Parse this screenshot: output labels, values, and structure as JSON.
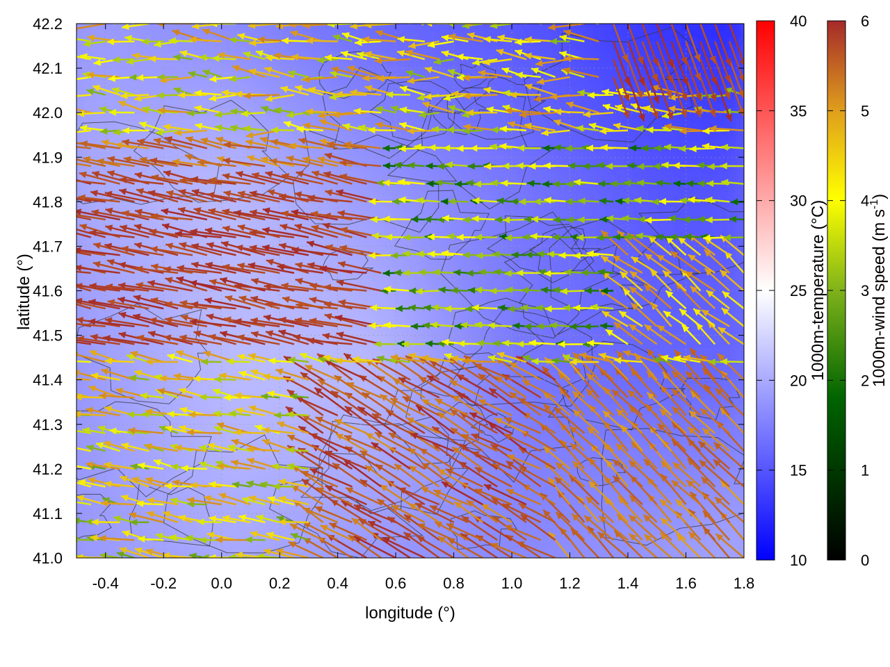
{
  "chart_data": {
    "type": "heatmap",
    "xlabel": "longitude (°)",
    "ylabel": "latitude (°)",
    "xlim": [
      -0.5,
      1.8
    ],
    "ylim": [
      41.0,
      42.2
    ],
    "xticks": [
      -0.4,
      -0.2,
      0.0,
      0.2,
      0.4,
      0.6,
      0.8,
      1.0,
      1.2,
      1.4,
      1.6,
      1.8
    ],
    "xtick_labels": [
      "-0.4",
      "-0.2",
      "0.0",
      "0.2",
      "0.4",
      "0.6",
      "0.8",
      "1.0",
      "1.2",
      "1.4",
      "1.6",
      "1.8"
    ],
    "yticks": [
      41.0,
      41.1,
      41.2,
      41.3,
      41.4,
      41.5,
      41.6,
      41.7,
      41.8,
      41.9,
      42.0,
      42.1,
      42.2
    ],
    "ytick_labels": [
      "41.0",
      "41.1",
      "41.2",
      "41.3",
      "41.4",
      "41.5",
      "41.6",
      "41.7",
      "41.8",
      "41.9",
      "42.0",
      "42.1",
      "42.2"
    ],
    "grid": true,
    "temperature_colorbar": {
      "label": "1000m-temperature (°C)",
      "range": [
        10,
        40
      ],
      "ticks": [
        10,
        15,
        20,
        25,
        30,
        35,
        40
      ],
      "tick_labels": [
        "10",
        "15",
        "20",
        "25",
        "30",
        "35",
        "40"
      ],
      "colors": [
        "#0000ff",
        "#ffffff",
        "#ff0000"
      ]
    },
    "wind_colorbar": {
      "label": "1000m-wind speed (m s",
      "label_sup": "-1",
      "label_end": ")",
      "range": [
        0,
        6
      ],
      "ticks": [
        0,
        1,
        2,
        3,
        4,
        5,
        6
      ],
      "tick_labels": [
        "0",
        "1",
        "2",
        "3",
        "4",
        "5",
        "6"
      ],
      "colors": [
        "#000000",
        "#006400",
        "#7fb21a",
        "#ffff00",
        "#e0a01c",
        "#c06020",
        "#a52a2a"
      ]
    },
    "temperature_field": {
      "description_values_degC": "approximate 1000m temperature",
      "lon": [
        -0.5,
        0.0,
        0.5,
        1.0,
        1.5,
        1.8
      ],
      "lat": [
        41.0,
        41.4,
        41.8,
        42.2
      ],
      "values": [
        [
          19,
          20,
          19,
          18,
          19,
          20
        ],
        [
          19,
          21,
          21,
          17,
          16,
          16
        ],
        [
          20,
          21,
          19,
          17,
          15,
          15
        ],
        [
          19,
          18,
          16,
          15,
          13,
          12
        ]
      ]
    },
    "wind_field": {
      "description": "1000m wind vectors, dominant easterly to south-easterly flow",
      "regions": [
        {
          "area": "west-central corridor (lat 41.45-41.95, lon -0.5-0.6)",
          "direction_deg_from": 100,
          "speed_ms": 6
        },
        {
          "area": "south-central (lat 41.05-41.4, lon 0.3-1.2)",
          "direction_deg_from": 120,
          "speed_ms": 5.5
        },
        {
          "area": "south-east (lat 41.0-41.4, lon 1.2-1.8)",
          "direction_deg_from": 135,
          "speed_ms": 4.5
        },
        {
          "area": "east (lat 41.4-41.9, lon 0.8-1.8)",
          "direction_deg_from": 90,
          "speed_ms": 2
        },
        {
          "area": "north-east (lat 42.05-42.2, lon 1.4-1.8)",
          "direction_deg_from": 340,
          "speed_ms": 5
        },
        {
          "area": "north (lat 41.95-42.2, lon 0.2-1.4)",
          "direction_deg_from": 80,
          "speed_ms": 3
        }
      ]
    },
    "contours": "terrain elevation contour lines (dark grey)"
  }
}
